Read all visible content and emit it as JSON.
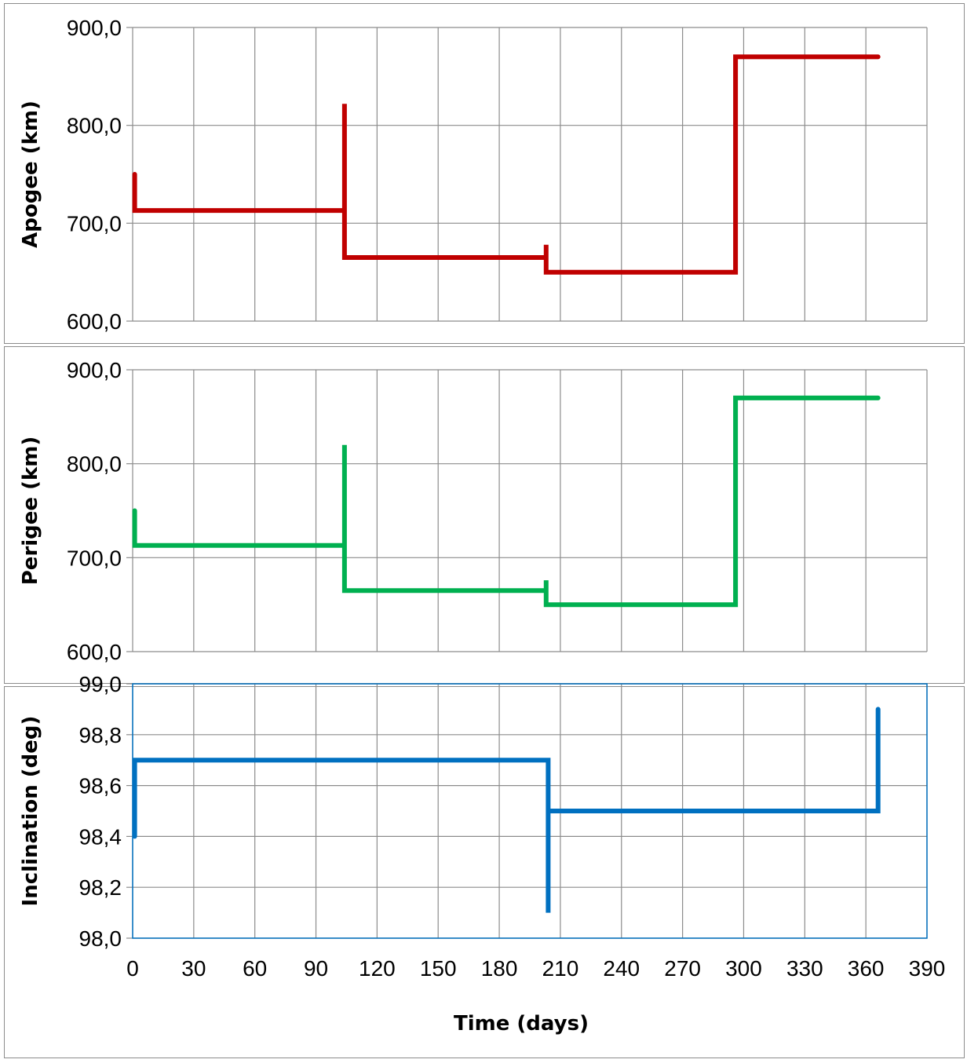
{
  "chart_data": [
    {
      "type": "line",
      "ylabel": "Apogee (km)",
      "ylim": [
        600,
        900
      ],
      "yticks": [
        "600,0",
        "700,0",
        "800,0",
        "900,0"
      ],
      "xlim": [
        0,
        390
      ],
      "grid": true,
      "series": [
        {
          "color": "#c00000",
          "x": [
            1,
            1,
            104,
            104,
            104,
            203,
            203,
            203,
            296,
            296,
            366
          ],
          "y": [
            750,
            713,
            713,
            822,
            665,
            665,
            678,
            650,
            650,
            870,
            870
          ]
        }
      ]
    },
    {
      "type": "line",
      "ylabel": "Perigee (km)",
      "ylim": [
        600,
        900
      ],
      "yticks": [
        "600,0",
        "700,0",
        "800,0",
        "900,0"
      ],
      "xlim": [
        0,
        390
      ],
      "grid": true,
      "series": [
        {
          "color": "#00b050",
          "x": [
            1,
            1,
            104,
            104,
            104,
            203,
            203,
            203,
            296,
            296,
            366
          ],
          "y": [
            750,
            713,
            713,
            820,
            665,
            665,
            676,
            650,
            650,
            870,
            870
          ]
        }
      ]
    },
    {
      "type": "line",
      "ylabel": "Inclination (deg)",
      "xlabel": "Time (days)",
      "ylim": [
        98.0,
        99.0
      ],
      "yticks": [
        "98,0",
        "98,2",
        "98,4",
        "98,6",
        "98,8",
        "99,0"
      ],
      "xlim": [
        0,
        390
      ],
      "xticks": [
        "0",
        "30",
        "60",
        "90",
        "120",
        "150",
        "180",
        "210",
        "240",
        "270",
        "300",
        "330",
        "360",
        "390"
      ],
      "grid": true,
      "series": [
        {
          "color": "#0070c0",
          "x": [
            1,
            1,
            204,
            204,
            204,
            366,
            366
          ],
          "y": [
            98.4,
            98.7,
            98.7,
            98.1,
            98.5,
            98.5,
            98.9
          ]
        }
      ]
    }
  ]
}
